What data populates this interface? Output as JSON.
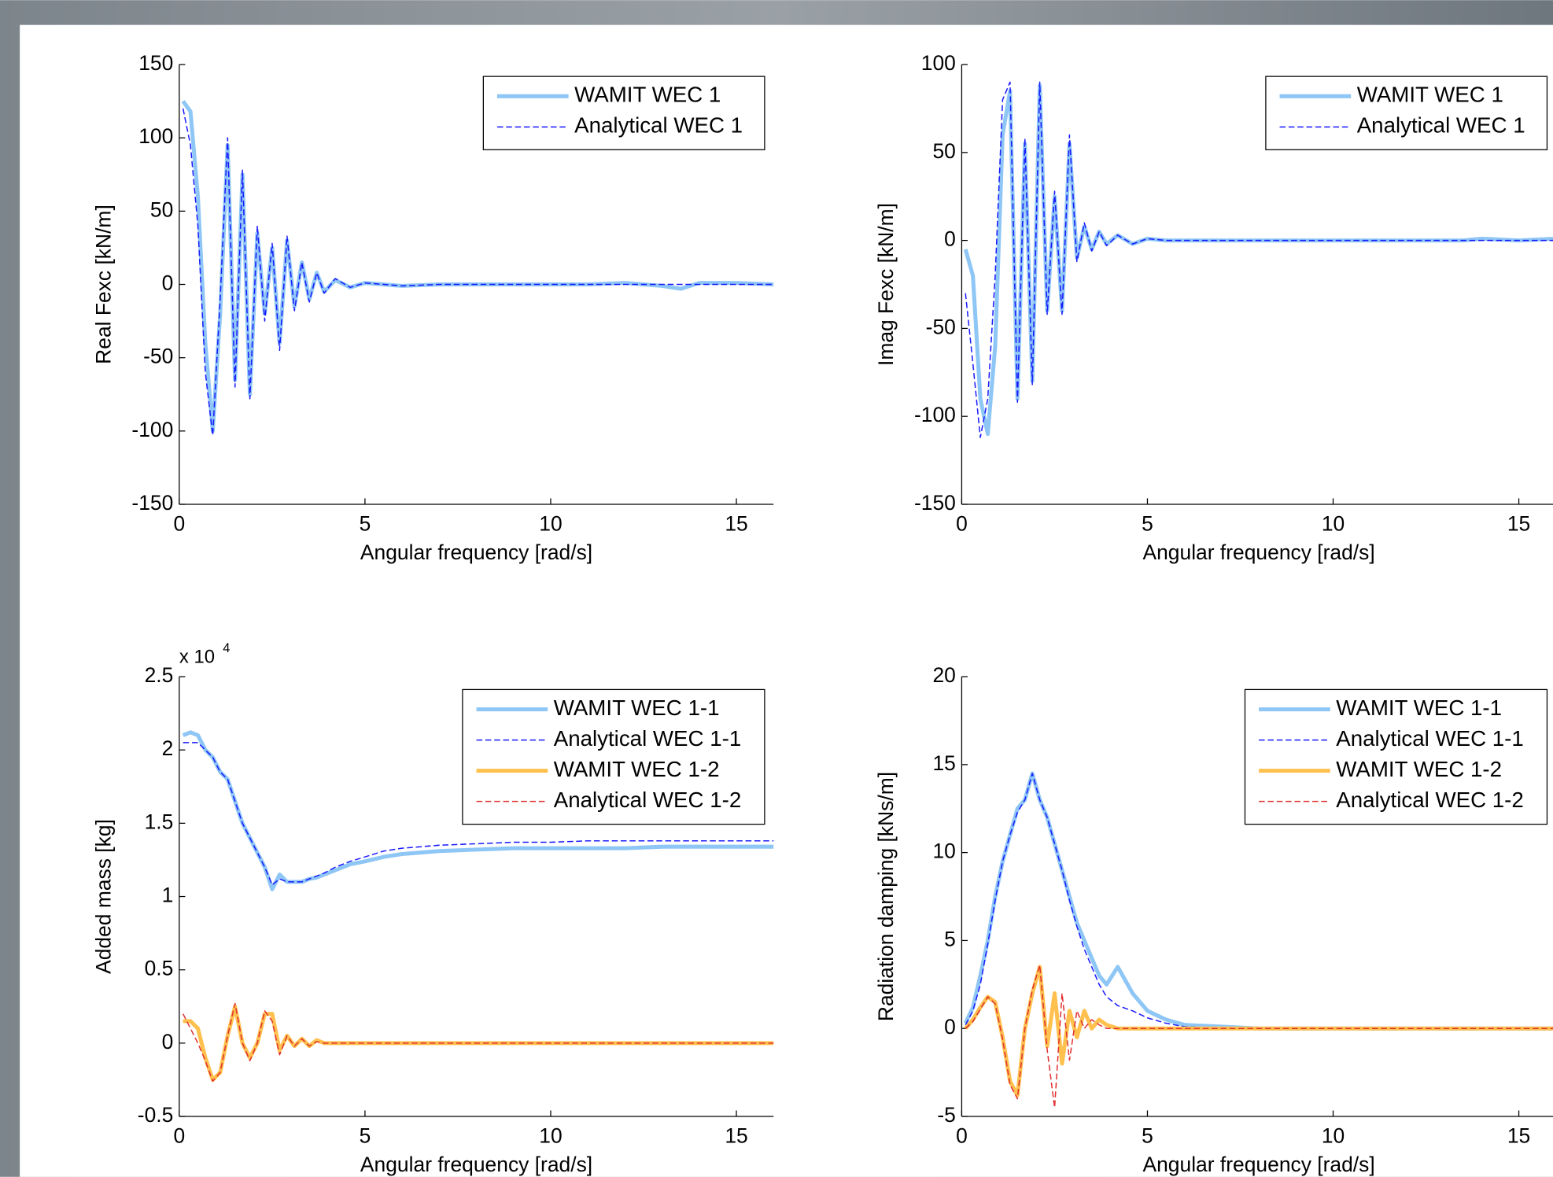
{
  "chart_data": [
    {
      "type": "line",
      "ylabel": "Real Fexc [kN/m]",
      "xlabel": "Angular frequency [rad/s]",
      "xlim": [
        0,
        16
      ],
      "xticks": [
        0,
        5,
        10,
        15
      ],
      "ylim": [
        -150,
        150
      ],
      "yticks": [
        -150,
        -100,
        -50,
        0,
        50,
        100,
        150
      ],
      "x": [
        0.1,
        0.3,
        0.5,
        0.7,
        0.9,
        1.1,
        1.3,
        1.5,
        1.7,
        1.9,
        2.1,
        2.3,
        2.5,
        2.7,
        2.9,
        3.1,
        3.3,
        3.5,
        3.7,
        3.9,
        4.2,
        4.6,
        5,
        5.5,
        6,
        7,
        8,
        9,
        10,
        11,
        12,
        13,
        13.5,
        14,
        15,
        16
      ],
      "series": [
        {
          "name": "WAMIT WEC 1",
          "color": "#8ec6f5",
          "style": "solid",
          "values": [
            125,
            118,
            60,
            -40,
            -100,
            -20,
            95,
            -65,
            75,
            -75,
            35,
            -20,
            25,
            -40,
            30,
            -15,
            15,
            -10,
            8,
            -5,
            3,
            -2,
            1,
            0,
            -1,
            0,
            0,
            0,
            0,
            0,
            1,
            -1,
            -3,
            1,
            1,
            0
          ]
        },
        {
          "name": "Analytical WEC 1",
          "color": "#1a1aff",
          "style": "dashed",
          "values": [
            120,
            95,
            40,
            -60,
            -103,
            -10,
            100,
            -70,
            78,
            -78,
            40,
            -25,
            28,
            -45,
            33,
            -18,
            15,
            -12,
            8,
            -6,
            4,
            -2,
            1,
            0,
            -1,
            0,
            0,
            0,
            0,
            0,
            0,
            0,
            0,
            0,
            0,
            0
          ]
        }
      ]
    },
    {
      "type": "line",
      "ylabel": "Imag Fexc [kN/m]",
      "xlabel": "Angular frequency [rad/s]",
      "xlim": [
        0,
        16
      ],
      "xticks": [
        0,
        5,
        10,
        15
      ],
      "ylim": [
        -150,
        100
      ],
      "yticks": [
        -150,
        -100,
        -50,
        0,
        50,
        100
      ],
      "x": [
        0.1,
        0.3,
        0.5,
        0.7,
        0.9,
        1.1,
        1.3,
        1.5,
        1.7,
        1.9,
        2.1,
        2.3,
        2.5,
        2.7,
        2.9,
        3.1,
        3.3,
        3.5,
        3.7,
        3.9,
        4.2,
        4.6,
        5,
        5.5,
        6,
        7,
        8,
        9,
        10,
        11,
        12,
        13,
        13.5,
        14,
        15,
        16
      ],
      "series": [
        {
          "name": "WAMIT WEC 1",
          "color": "#8ec6f5",
          "style": "solid",
          "values": [
            -5,
            -20,
            -90,
            -110,
            -60,
            60,
            85,
            -90,
            55,
            -80,
            88,
            -40,
            25,
            -40,
            55,
            -10,
            8,
            -5,
            5,
            -2,
            3,
            -2,
            1,
            0,
            0,
            0,
            0,
            0,
            0,
            0,
            0,
            0,
            0,
            1,
            0,
            1
          ]
        },
        {
          "name": "Analytical WEC 1",
          "color": "#1a1aff",
          "style": "dashed",
          "values": [
            -30,
            -70,
            -112,
            -90,
            -20,
            80,
            90,
            -92,
            58,
            -82,
            90,
            -42,
            28,
            -42,
            60,
            -12,
            10,
            -6,
            5,
            -3,
            3,
            -2,
            1,
            0,
            0,
            0,
            0,
            0,
            0,
            0,
            0,
            0,
            0,
            0,
            0,
            0
          ]
        }
      ]
    },
    {
      "type": "line",
      "ylabel": "Added mass [kg]",
      "xlabel": "Angular frequency [rad/s]",
      "multiplier": "x 10",
      "multiplier_exponent": "4",
      "xlim": [
        0,
        16
      ],
      "xticks": [
        0,
        5,
        10,
        15
      ],
      "ylim": [
        -0.5,
        2.5
      ],
      "yticks": [
        -0.5,
        0,
        0.5,
        1,
        1.5,
        2,
        2.5
      ],
      "x": [
        0.1,
        0.3,
        0.5,
        0.7,
        0.9,
        1.1,
        1.3,
        1.5,
        1.7,
        1.9,
        2.1,
        2.3,
        2.5,
        2.7,
        2.9,
        3.1,
        3.3,
        3.5,
        3.7,
        3.9,
        4.2,
        4.6,
        5,
        5.5,
        6,
        7,
        8,
        9,
        10,
        11,
        12,
        13,
        13.5,
        14,
        15,
        16
      ],
      "series": [
        {
          "name": "WAMIT WEC 1-1",
          "color": "#8ec6f5",
          "style": "solid",
          "values": [
            2.1,
            2.12,
            2.1,
            2.0,
            1.95,
            1.85,
            1.8,
            1.65,
            1.5,
            1.4,
            1.3,
            1.2,
            1.05,
            1.15,
            1.1,
            1.1,
            1.1,
            1.12,
            1.13,
            1.15,
            1.18,
            1.22,
            1.24,
            1.27,
            1.29,
            1.31,
            1.32,
            1.33,
            1.33,
            1.33,
            1.33,
            1.34,
            1.34,
            1.34,
            1.34,
            1.34
          ]
        },
        {
          "name": "Analytical WEC 1-1",
          "color": "#1a1aff",
          "style": "dashed",
          "values": [
            2.05,
            2.05,
            2.05,
            2.0,
            1.95,
            1.85,
            1.8,
            1.65,
            1.5,
            1.4,
            1.3,
            1.2,
            1.08,
            1.12,
            1.1,
            1.1,
            1.1,
            1.12,
            1.14,
            1.16,
            1.2,
            1.24,
            1.27,
            1.31,
            1.33,
            1.35,
            1.36,
            1.37,
            1.37,
            1.38,
            1.38,
            1.38,
            1.38,
            1.38,
            1.38,
            1.38
          ]
        },
        {
          "name": "WAMIT WEC 1-2",
          "color": "#ffc04d",
          "style": "solid",
          "values": [
            0.15,
            0.15,
            0.1,
            -0.1,
            -0.25,
            -0.2,
            0.05,
            0.25,
            0,
            -0.1,
            0,
            0.2,
            0.2,
            -0.05,
            0.05,
            -0.02,
            0.03,
            -0.02,
            0.02,
            0,
            0,
            0,
            0,
            0,
            0,
            0,
            0,
            0,
            0,
            0,
            0,
            0,
            0,
            0,
            0,
            0
          ]
        },
        {
          "name": "Analytical WEC 1-2",
          "color": "#e03030",
          "style": "dashed",
          "values": [
            0.2,
            0.1,
            0.0,
            -0.12,
            -0.26,
            -0.2,
            0.05,
            0.27,
            0,
            -0.12,
            0,
            0.22,
            0.15,
            -0.08,
            0.05,
            -0.02,
            0.03,
            -0.02,
            0.01,
            0,
            0,
            0,
            0,
            0,
            0,
            0,
            0,
            0,
            0,
            0,
            0,
            0,
            0,
            0,
            0,
            0
          ]
        }
      ]
    },
    {
      "type": "line",
      "ylabel": "Radiation damping [kNs/m]",
      "xlabel": "Angular frequency [rad/s]",
      "xlim": [
        0,
        16
      ],
      "xticks": [
        0,
        5,
        10,
        15
      ],
      "ylim": [
        -5,
        20
      ],
      "yticks": [
        -5,
        0,
        5,
        10,
        15,
        20
      ],
      "x": [
        0.1,
        0.3,
        0.5,
        0.7,
        0.9,
        1.1,
        1.3,
        1.5,
        1.7,
        1.9,
        2.1,
        2.3,
        2.5,
        2.7,
        2.9,
        3.1,
        3.3,
        3.5,
        3.7,
        3.9,
        4.2,
        4.6,
        5,
        5.5,
        6,
        7,
        8,
        9,
        10,
        11,
        12,
        13,
        13.5,
        14,
        15,
        16
      ],
      "series": [
        {
          "name": "WAMIT WEC 1-1",
          "color": "#8ec6f5",
          "style": "solid",
          "values": [
            0.3,
            1.2,
            3,
            5,
            7.5,
            9.5,
            11,
            12.5,
            13,
            14.5,
            13,
            12,
            10.5,
            9,
            7.5,
            6,
            5,
            4,
            3,
            2.5,
            3.5,
            2,
            1,
            0.5,
            0.2,
            0.1,
            0,
            0,
            0,
            0,
            0,
            0,
            0,
            0,
            0,
            0
          ]
        },
        {
          "name": "Analytical WEC 1-1",
          "color": "#1a1aff",
          "style": "dashed",
          "values": [
            0.2,
            1,
            2.5,
            4.8,
            7.3,
            9.5,
            11,
            12.3,
            13,
            14.5,
            13,
            12,
            10.5,
            9,
            7.3,
            5.8,
            4.5,
            3.5,
            2.5,
            1.8,
            1.3,
            1,
            0.6,
            0.3,
            0.1,
            0,
            0,
            0,
            0,
            0,
            0,
            0,
            0,
            0,
            0,
            0
          ]
        },
        {
          "name": "WAMIT WEC 1-2",
          "color": "#ffc04d",
          "style": "solid",
          "values": [
            0,
            0.5,
            1.2,
            1.8,
            1.5,
            -0.5,
            -3,
            -3.8,
            0,
            2,
            3.5,
            -1,
            2,
            -2,
            1,
            -0.5,
            1,
            0,
            0.5,
            0.2,
            0,
            0,
            0,
            0,
            0,
            0,
            0,
            0,
            0,
            0,
            0,
            0,
            0,
            0,
            0,
            0
          ]
        },
        {
          "name": "Analytical WEC 1-2",
          "color": "#e03030",
          "style": "dashed",
          "values": [
            0,
            0.4,
            1.1,
            1.8,
            1.4,
            -0.6,
            -3.2,
            -4,
            0,
            2.2,
            3.6,
            -1.2,
            -4.5,
            2,
            -1.8,
            1,
            0,
            0.5,
            0.2,
            0,
            0,
            0,
            0,
            0,
            0,
            0,
            0,
            0,
            0,
            0,
            0,
            0,
            0,
            0,
            0,
            0
          ]
        }
      ]
    }
  ]
}
